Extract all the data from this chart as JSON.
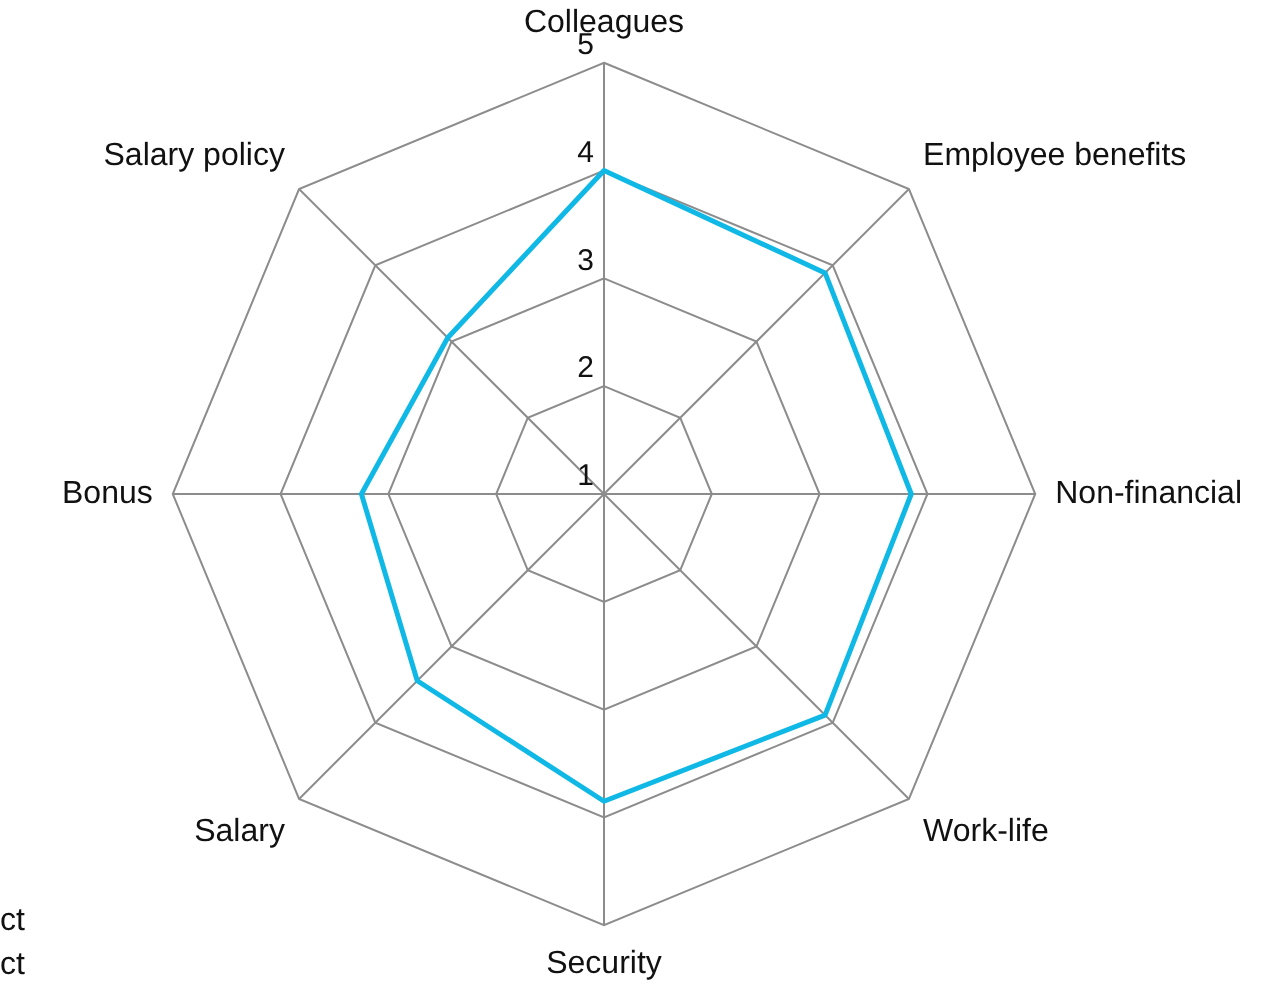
{
  "chart_data": {
    "type": "radar",
    "categories": [
      "Colleagues",
      "Employee benefits",
      "Non-financial",
      "Work-life",
      "Security",
      "Salary",
      "Bonus",
      "Salary policy"
    ],
    "series": [
      {
        "color": "#10b8e6",
        "values": [
          4.0,
          3.9,
          3.85,
          3.9,
          3.85,
          3.45,
          3.25,
          3.05
        ]
      }
    ],
    "ylim": [
      1,
      5
    ],
    "yticks": [
      1,
      2,
      3,
      4,
      5
    ],
    "grid": true,
    "legend": false,
    "marker": "none",
    "line_style": "solid",
    "annotations": [
      "ct",
      "ct"
    ]
  }
}
